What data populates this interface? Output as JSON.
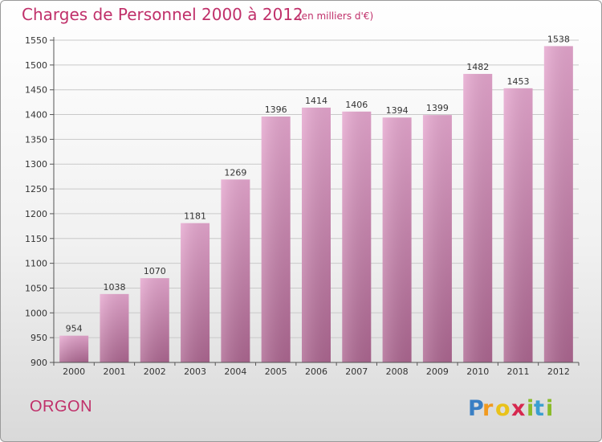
{
  "header": {
    "title": "Charges de Personnel 2000 à 2012",
    "subtitle": "(en milliers d'€)"
  },
  "footer": {
    "commune": "ORGON",
    "logo_text": "Proxiti"
  },
  "colors": {
    "title": "#c0306a",
    "bar_top": "#e6a7cf",
    "bar_bottom": "#ad6791",
    "grid": "#c9c9c9"
  },
  "chart_data": {
    "type": "bar",
    "title": "Charges de Personnel 2000 à 2012",
    "subtitle": "(en milliers d'€)",
    "categories": [
      "2000",
      "2001",
      "2002",
      "2003",
      "2004",
      "2005",
      "2006",
      "2007",
      "2008",
      "2009",
      "2010",
      "2011",
      "2012"
    ],
    "values": [
      954,
      1038,
      1070,
      1181,
      1269,
      1396,
      1414,
      1406,
      1394,
      1399,
      1482,
      1453,
      1538
    ],
    "ylim": [
      900,
      1550
    ],
    "yticks": [
      900,
      950,
      1000,
      1050,
      1100,
      1150,
      1200,
      1250,
      1300,
      1350,
      1400,
      1450,
      1500,
      1550
    ],
    "grid": true,
    "data_labels": true,
    "xlabel": "",
    "ylabel": ""
  }
}
